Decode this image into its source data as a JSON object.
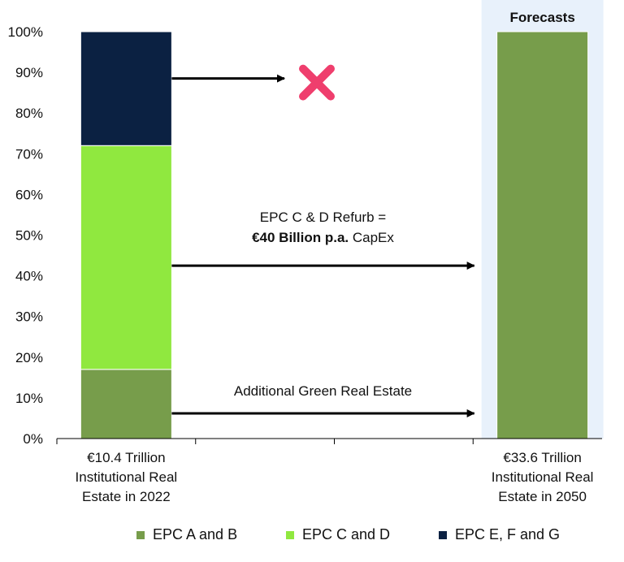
{
  "chart_data": {
    "type": "bar",
    "stacked": true,
    "categories": [
      "€10.4 Trillion\nInstitutional Real\nEstate in 2022",
      "",
      "",
      "€33.6 Trillion\nInstitutional Real\nEstate in 2050"
    ],
    "series": [
      {
        "name": "EPC A and B",
        "values": [
          17,
          0,
          0,
          100
        ],
        "color": "#779d4b"
      },
      {
        "name": "EPC C and D",
        "values": [
          55,
          0,
          0,
          0
        ],
        "color": "#90e83f"
      },
      {
        "name": "EPC E, F and G",
        "values": [
          28,
          0,
          0,
          0
        ],
        "color": "#0b2142"
      }
    ],
    "ylim": [
      0,
      100
    ],
    "yticks": [
      "0%",
      "10%",
      "20%",
      "30%",
      "40%",
      "50%",
      "60%",
      "70%",
      "80%",
      "90%",
      "100%"
    ],
    "xlabel": "",
    "ylabel": "",
    "forecast_label": "Forecasts",
    "forecast_band_color": "#e8f1fb",
    "annotations": {
      "refurb_line1": "EPC C & D Refurb =",
      "refurb_bold": "€40 Billion p.a.",
      "refurb_suffix": "CapEx",
      "additional": "Additional Green Real Estate",
      "cross_color": "#ef3e6d"
    },
    "legend_position": "bottom"
  }
}
